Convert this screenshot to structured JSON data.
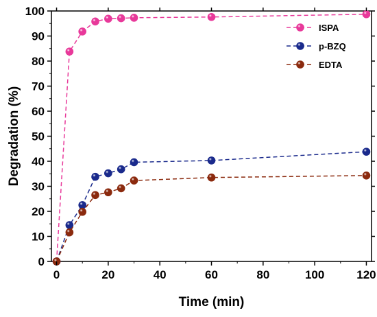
{
  "chart_data": {
    "type": "line",
    "title": "",
    "xlabel": "Time (min)",
    "ylabel": "Degradation (%)",
    "xlim": [
      -2,
      122
    ],
    "ylim": [
      0,
      100
    ],
    "xticks": [
      0,
      20,
      40,
      60,
      80,
      100,
      120
    ],
    "yticks": [
      0,
      10,
      20,
      30,
      40,
      50,
      60,
      70,
      80,
      90,
      100
    ],
    "x": [
      0,
      5,
      10,
      15,
      20,
      25,
      30,
      60,
      120
    ],
    "grid": false,
    "legend_position": "top-right",
    "series": [
      {
        "name": "ISPA",
        "color": "#e8399a",
        "marker": "circle",
        "line": "dashed",
        "values": [
          0,
          83.8,
          91.8,
          95.8,
          96.9,
          97.1,
          97.3,
          97.6,
          98.7
        ]
      },
      {
        "name": "p-BZQ",
        "color": "#1a2a8c",
        "marker": "circle",
        "line": "dashed",
        "values": [
          0,
          14.5,
          22.5,
          33.8,
          35.2,
          36.8,
          39.6,
          40.3,
          43.8
        ]
      },
      {
        "name": "EDTA",
        "color": "#8b2a0e",
        "marker": "circle",
        "line": "dashed",
        "values": [
          0,
          11.6,
          19.8,
          26.5,
          27.6,
          29.2,
          32.3,
          33.5,
          34.3
        ]
      }
    ]
  }
}
